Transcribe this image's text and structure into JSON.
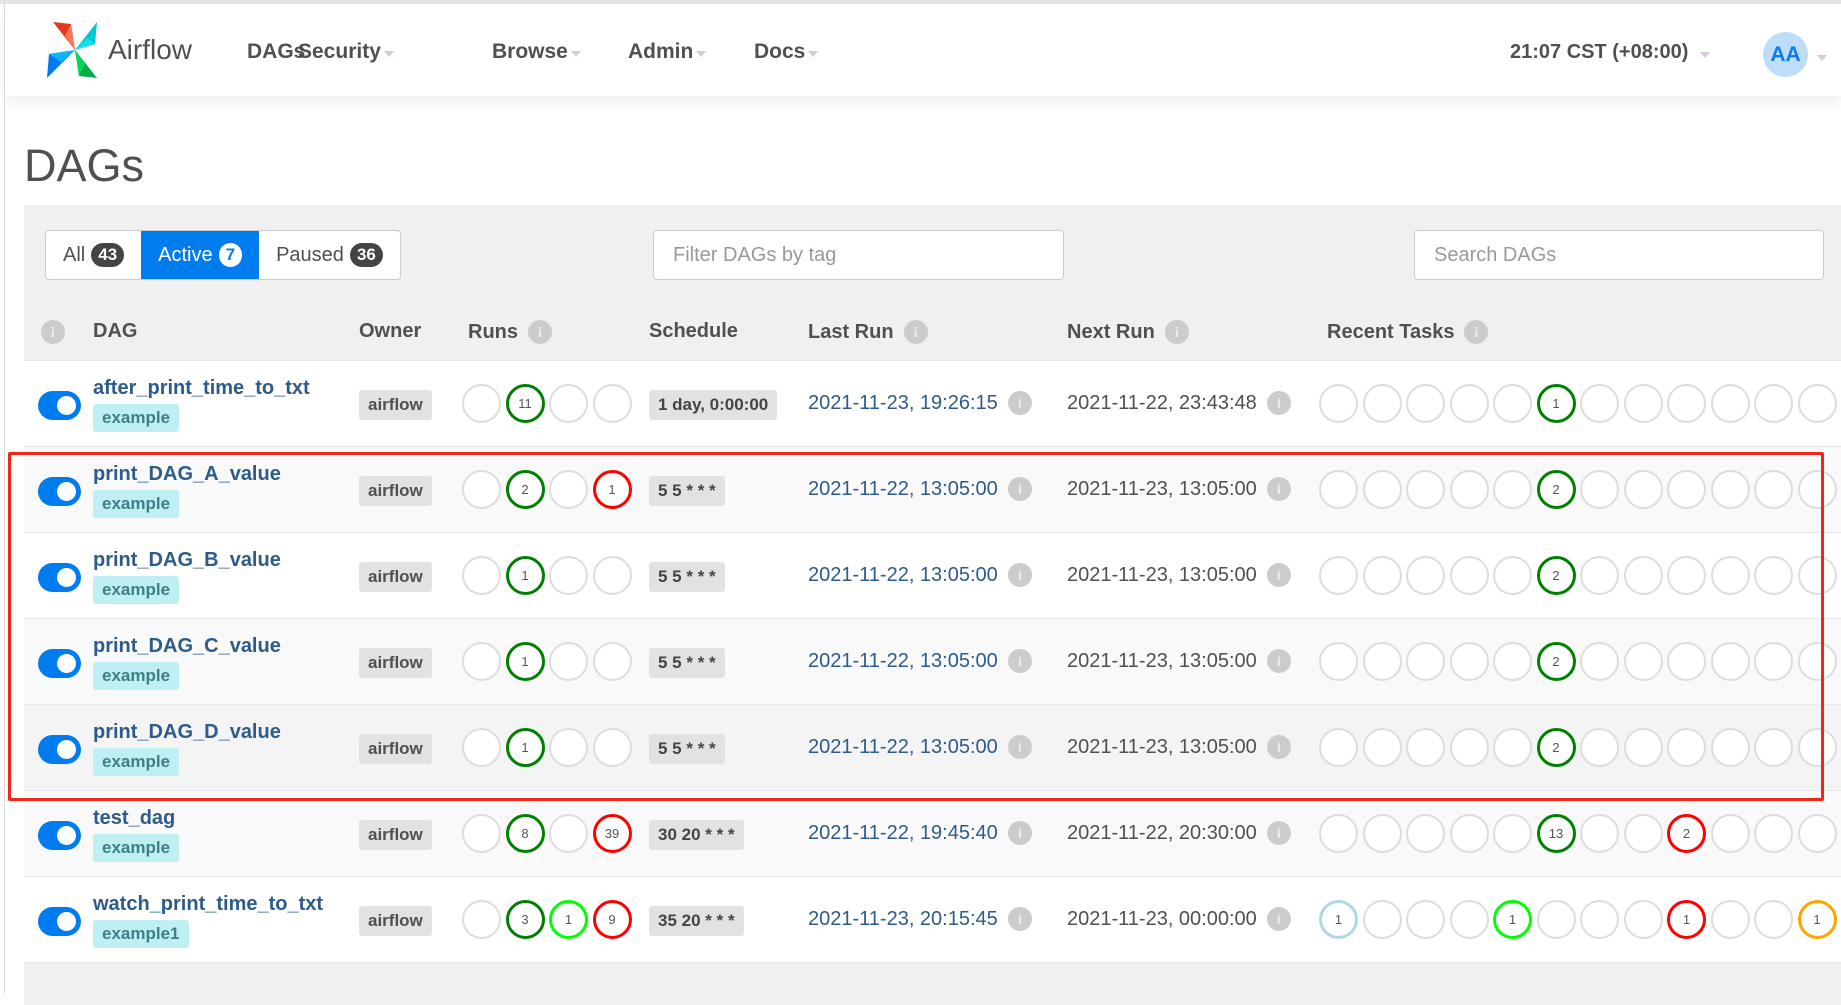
{
  "navbar": {
    "brand": "Airflow",
    "items": [
      {
        "label": "DAGs",
        "dropdown": false
      },
      {
        "label": "Security",
        "dropdown": true
      },
      {
        "label": "Browse",
        "dropdown": true
      },
      {
        "label": "Admin",
        "dropdown": true
      },
      {
        "label": "Docs",
        "dropdown": true
      }
    ],
    "clock": "21:07 CST (+08:00)",
    "avatar": "AA"
  },
  "page_title": "DAGs",
  "filters": {
    "all_label": "All",
    "all_count": "43",
    "active_label": "Active",
    "active_count": "7",
    "paused_label": "Paused",
    "paused_count": "36",
    "selected": "Active"
  },
  "tag_filter": {
    "placeholder": "Filter DAGs by tag"
  },
  "search": {
    "placeholder": "Search DAGs"
  },
  "columns": {
    "dag": "DAG",
    "owner": "Owner",
    "runs": "Runs",
    "schedule": "Schedule",
    "last_run": "Last Run",
    "next_run": "Next Run",
    "recent_tasks": "Recent Tasks"
  },
  "colors": {
    "success": "#008000",
    "failed": "#ff0000",
    "running": "#00ff00",
    "queued": "#808080",
    "up_for_retry": "#ffd700",
    "skipped": "#ff69b4",
    "scheduled": "#add8e6",
    "upstream_failed": "#ffa500",
    "empty": "#dddddd",
    "highlight": "#f0261b",
    "accent": "#017cee"
  },
  "rows": [
    {
      "name": "after_print_time_to_txt",
      "tag": "example",
      "active": true,
      "owner": "airflow",
      "runs": [
        null,
        {
          "n": "11",
          "state": "success"
        },
        null,
        null
      ],
      "schedule": "1 day, 0:00:00",
      "last_run": "2021-11-23, 19:26:15",
      "next_run": "2021-11-22, 23:43:48",
      "recent_tasks": [
        null,
        null,
        null,
        null,
        null,
        {
          "n": "1",
          "state": "success"
        },
        null,
        null,
        null,
        null,
        null,
        null
      ]
    },
    {
      "name": "print_DAG_A_value",
      "tag": "example",
      "active": true,
      "owner": "airflow",
      "runs": [
        null,
        {
          "n": "2",
          "state": "success"
        },
        null,
        {
          "n": "1",
          "state": "failed"
        }
      ],
      "schedule": "5 5 * * *",
      "last_run": "2021-11-22, 13:05:00",
      "next_run": "2021-11-23, 13:05:00",
      "recent_tasks": [
        null,
        null,
        null,
        null,
        null,
        {
          "n": "2",
          "state": "success"
        },
        null,
        null,
        null,
        null,
        null,
        null
      ]
    },
    {
      "name": "print_DAG_B_value",
      "tag": "example",
      "active": true,
      "owner": "airflow",
      "runs": [
        null,
        {
          "n": "1",
          "state": "success"
        },
        null,
        null
      ],
      "schedule": "5 5 * * *",
      "last_run": "2021-11-22, 13:05:00",
      "next_run": "2021-11-23, 13:05:00",
      "recent_tasks": [
        null,
        null,
        null,
        null,
        null,
        {
          "n": "2",
          "state": "success"
        },
        null,
        null,
        null,
        null,
        null,
        null
      ]
    },
    {
      "name": "print_DAG_C_value",
      "tag": "example",
      "active": true,
      "owner": "airflow",
      "runs": [
        null,
        {
          "n": "1",
          "state": "success"
        },
        null,
        null
      ],
      "schedule": "5 5 * * *",
      "last_run": "2021-11-22, 13:05:00",
      "next_run": "2021-11-23, 13:05:00",
      "recent_tasks": [
        null,
        null,
        null,
        null,
        null,
        {
          "n": "2",
          "state": "success"
        },
        null,
        null,
        null,
        null,
        null,
        null
      ]
    },
    {
      "name": "print_DAG_D_value",
      "tag": "example",
      "active": true,
      "owner": "airflow",
      "runs": [
        null,
        {
          "n": "1",
          "state": "success"
        },
        null,
        null
      ],
      "schedule": "5 5 * * *",
      "last_run": "2021-11-22, 13:05:00",
      "next_run": "2021-11-23, 13:05:00",
      "recent_tasks": [
        null,
        null,
        null,
        null,
        null,
        {
          "n": "2",
          "state": "success"
        },
        null,
        null,
        null,
        null,
        null,
        null
      ]
    },
    {
      "name": "test_dag",
      "tag": "example",
      "active": true,
      "owner": "airflow",
      "runs": [
        null,
        {
          "n": "8",
          "state": "success"
        },
        null,
        {
          "n": "39",
          "state": "failed"
        }
      ],
      "schedule": "30 20 * * *",
      "last_run": "2021-11-22, 19:45:40",
      "next_run": "2021-11-22, 20:30:00",
      "recent_tasks": [
        null,
        null,
        null,
        null,
        null,
        {
          "n": "13",
          "state": "success"
        },
        null,
        null,
        {
          "n": "2",
          "state": "failed"
        },
        null,
        null,
        null
      ]
    },
    {
      "name": "watch_print_time_to_txt",
      "tag": "example1",
      "active": true,
      "owner": "airflow",
      "runs": [
        null,
        {
          "n": "3",
          "state": "success"
        },
        {
          "n": "1",
          "state": "running"
        },
        {
          "n": "9",
          "state": "failed"
        }
      ],
      "schedule": "35 20 * * *",
      "last_run": "2021-11-23, 20:15:45",
      "next_run": "2021-11-23, 00:00:00",
      "recent_tasks": [
        {
          "n": "1",
          "state": "scheduled"
        },
        null,
        null,
        null,
        {
          "n": "1",
          "state": "running"
        },
        null,
        null,
        null,
        {
          "n": "1",
          "state": "failed"
        },
        null,
        null,
        {
          "n": "1",
          "state": "upstream_failed"
        }
      ]
    }
  ]
}
